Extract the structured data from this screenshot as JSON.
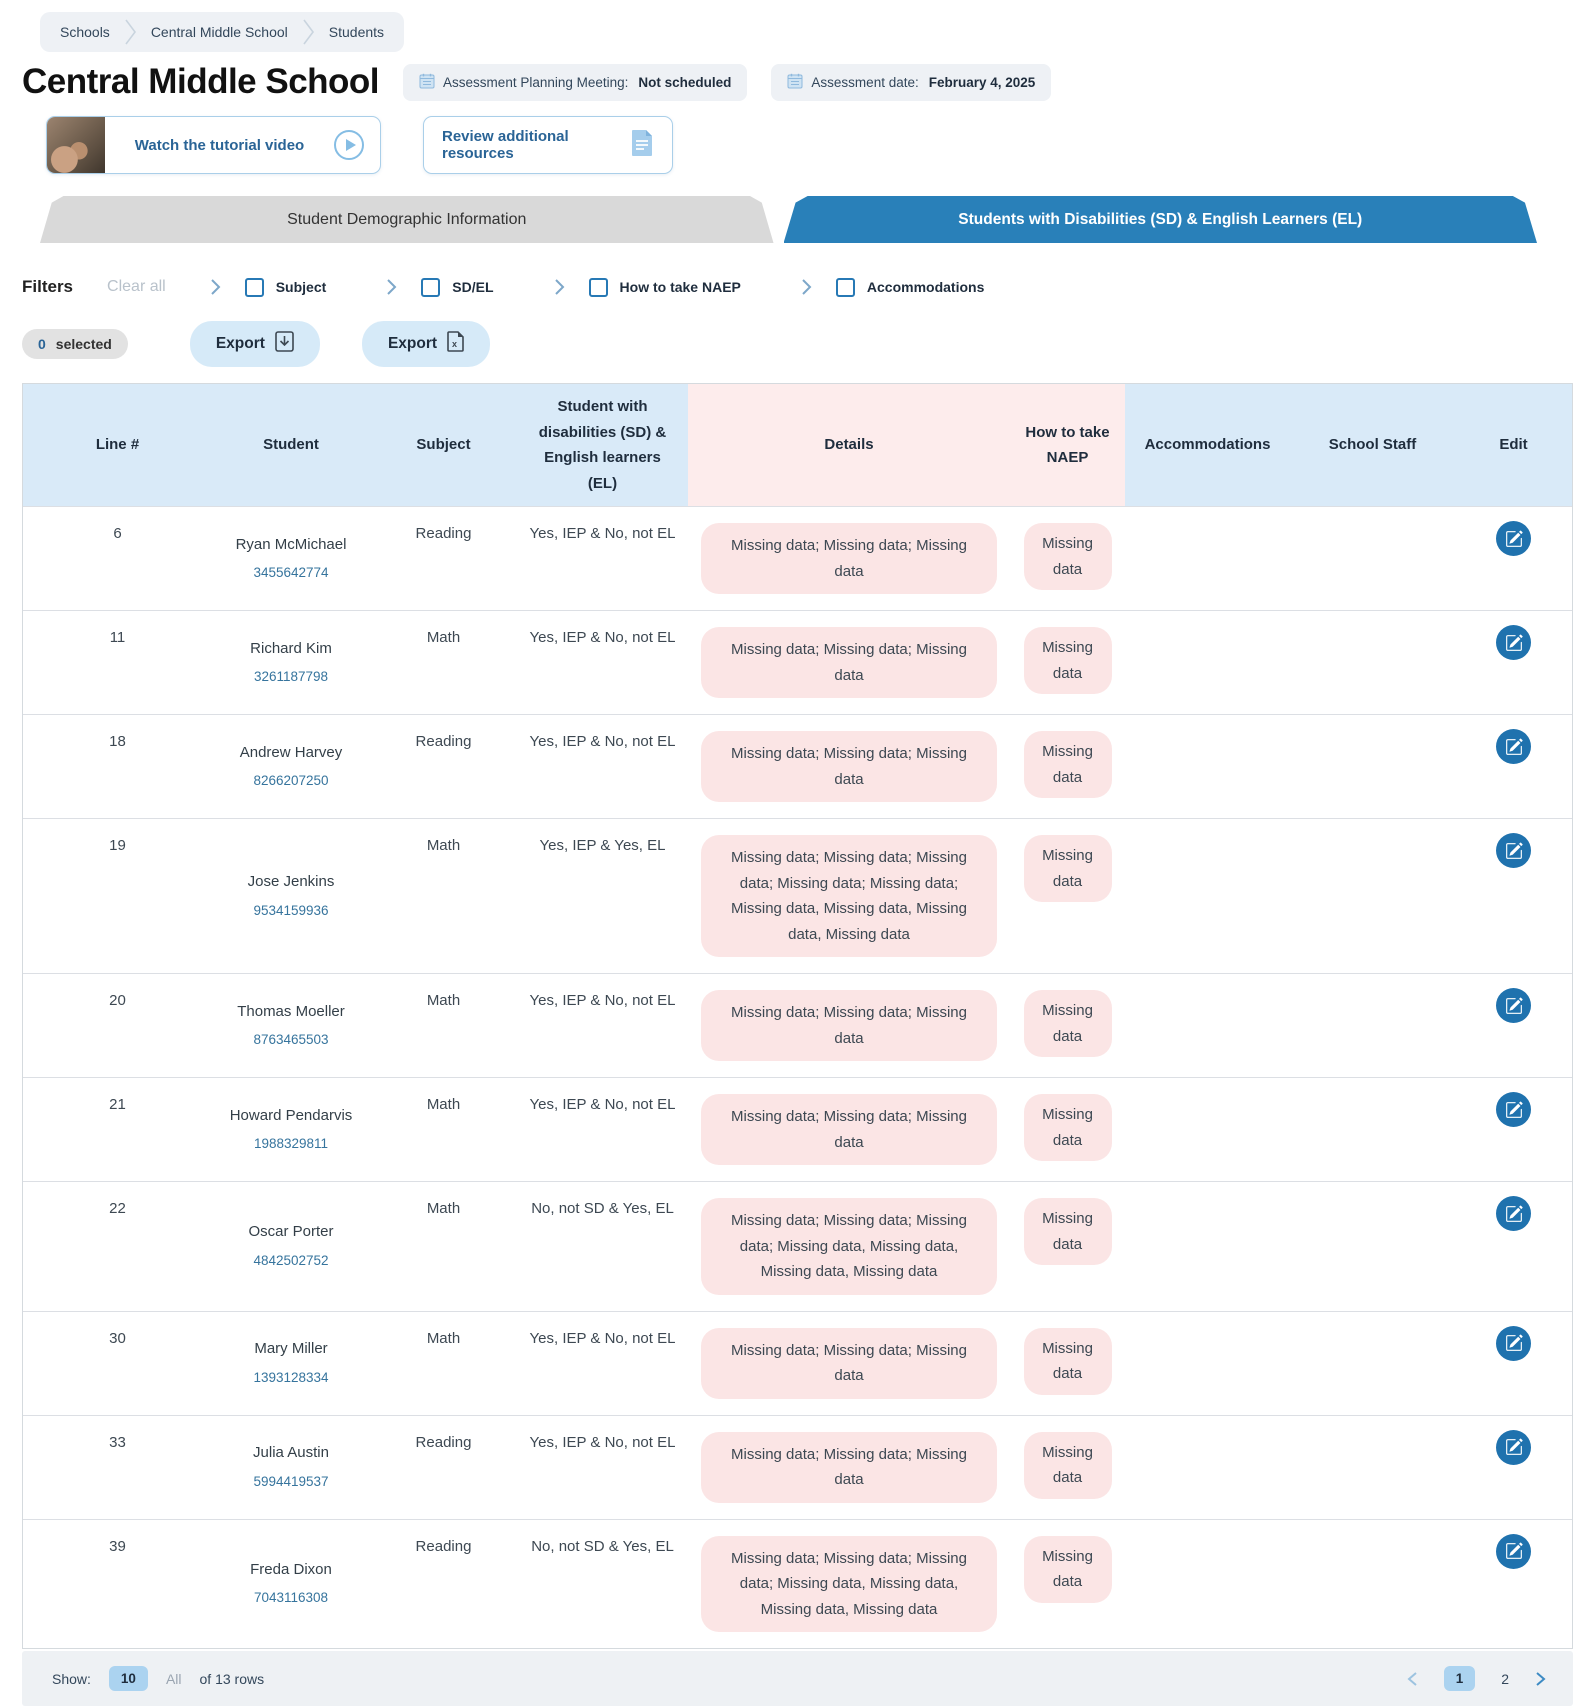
{
  "breadcrumb": {
    "items": [
      "Schools",
      "Central Middle School",
      "Students"
    ]
  },
  "header": {
    "title": "Central Middle School",
    "badges": [
      {
        "icon": "calendar-icon",
        "label": "Assessment Planning Meeting:",
        "value": "Not scheduled"
      },
      {
        "icon": "calendar-icon",
        "label": "Assessment date:",
        "value": "February 4, 2025"
      }
    ]
  },
  "action_cards": [
    {
      "label": "Watch the tutorial video",
      "icon": "play-icon"
    },
    {
      "label": "Review additional resources",
      "icon": "document-icon"
    }
  ],
  "tabs": [
    {
      "label": "Student Demographic Information",
      "active": false
    },
    {
      "label": "Students with Disabilities (SD) & English Learners (EL)",
      "active": true
    }
  ],
  "filters": {
    "title": "Filters",
    "clear_all": "Clear all",
    "groups": [
      {
        "label": "Subject",
        "checked": false
      },
      {
        "label": "SD/EL",
        "checked": false
      },
      {
        "label": "How to take NAEP",
        "checked": false
      },
      {
        "label": "Accommodations",
        "checked": false
      }
    ]
  },
  "toolbar": {
    "selected_count": "0",
    "selected_label": "selected",
    "export_pdf_label": "Export",
    "export_excel_label": "Export"
  },
  "table": {
    "columns": [
      "Line #",
      "Student",
      "Subject",
      "Student with disabilities (SD) & English learners (EL)",
      "Details",
      "How to take NAEP",
      "Accommodations",
      "School Staff",
      "Edit"
    ],
    "rows": [
      {
        "line": "6",
        "student": "Ryan McMichael",
        "student_id": "3455642774",
        "subject": "Reading",
        "sd_el": "Yes, IEP & No, not EL",
        "details": "Missing data; Missing data; Missing data",
        "how_to_take_naep": "Missing data",
        "accommodations": "",
        "school_staff": ""
      },
      {
        "line": "11",
        "student": "Richard Kim",
        "student_id": "3261187798",
        "subject": "Math",
        "sd_el": "Yes, IEP & No, not EL",
        "details": "Missing data; Missing data; Missing data",
        "how_to_take_naep": "Missing data",
        "accommodations": "",
        "school_staff": ""
      },
      {
        "line": "18",
        "student": "Andrew Harvey",
        "student_id": "8266207250",
        "subject": "Reading",
        "sd_el": "Yes, IEP & No, not EL",
        "details": "Missing data; Missing data; Missing data",
        "how_to_take_naep": "Missing data",
        "accommodations": "",
        "school_staff": ""
      },
      {
        "line": "19",
        "student": "Jose Jenkins",
        "student_id": "9534159936",
        "subject": "Math",
        "sd_el": "Yes, IEP & Yes, EL",
        "details": "Missing data; Missing data; Missing data; Missing data; Missing data; Missing data, Missing data, Missing data, Missing data",
        "how_to_take_naep": "Missing data",
        "accommodations": "",
        "school_staff": ""
      },
      {
        "line": "20",
        "student": "Thomas Moeller",
        "student_id": "8763465503",
        "subject": "Math",
        "sd_el": "Yes, IEP & No, not EL",
        "details": "Missing data; Missing data; Missing data",
        "how_to_take_naep": "Missing data",
        "accommodations": "",
        "school_staff": ""
      },
      {
        "line": "21",
        "student": "Howard Pendarvis",
        "student_id": "1988329811",
        "subject": "Math",
        "sd_el": "Yes, IEP & No, not EL",
        "details": "Missing data; Missing data; Missing data",
        "how_to_take_naep": "Missing data",
        "accommodations": "",
        "school_staff": ""
      },
      {
        "line": "22",
        "student": "Oscar Porter",
        "student_id": "4842502752",
        "subject": "Math",
        "sd_el": "No, not SD & Yes, EL",
        "details": "Missing data; Missing data; Missing data; Missing data, Missing data, Missing data, Missing data",
        "how_to_take_naep": "Missing data",
        "accommodations": "",
        "school_staff": ""
      },
      {
        "line": "30",
        "student": "Mary Miller",
        "student_id": "1393128334",
        "subject": "Math",
        "sd_el": "Yes, IEP & No, not EL",
        "details": "Missing data; Missing data; Missing data",
        "how_to_take_naep": "Missing data",
        "accommodations": "",
        "school_staff": ""
      },
      {
        "line": "33",
        "student": "Julia Austin",
        "student_id": "5994419537",
        "subject": "Reading",
        "sd_el": "Yes, IEP & No, not EL",
        "details": "Missing data; Missing data; Missing data",
        "how_to_take_naep": "Missing data",
        "accommodations": "",
        "school_staff": ""
      },
      {
        "line": "39",
        "student": "Freda Dixon",
        "student_id": "7043116308",
        "subject": "Reading",
        "sd_el": "No, not SD & Yes, EL",
        "details": "Missing data; Missing data; Missing data; Missing data, Missing data, Missing data, Missing data",
        "how_to_take_naep": "Missing data",
        "accommodations": "",
        "school_staff": ""
      }
    ]
  },
  "footer": {
    "show_label": "Show:",
    "page_size_selected": "10",
    "page_size_all": "All",
    "rows_label": "of 13 rows",
    "pages": [
      "1",
      "2"
    ],
    "current_page": "1"
  },
  "colors": {
    "accent_blue": "#2980b9",
    "edit_button_blue": "#1f72ae",
    "header_blue": "#d9eaf8",
    "header_pink": "#fdecec",
    "pill_pink": "#fbe5e5",
    "light_blue_chip": "#abd3f0",
    "export_button_blue": "#d6eaf8",
    "gray_surface": "#eef1f4",
    "student_id_blue": "#36749d"
  }
}
